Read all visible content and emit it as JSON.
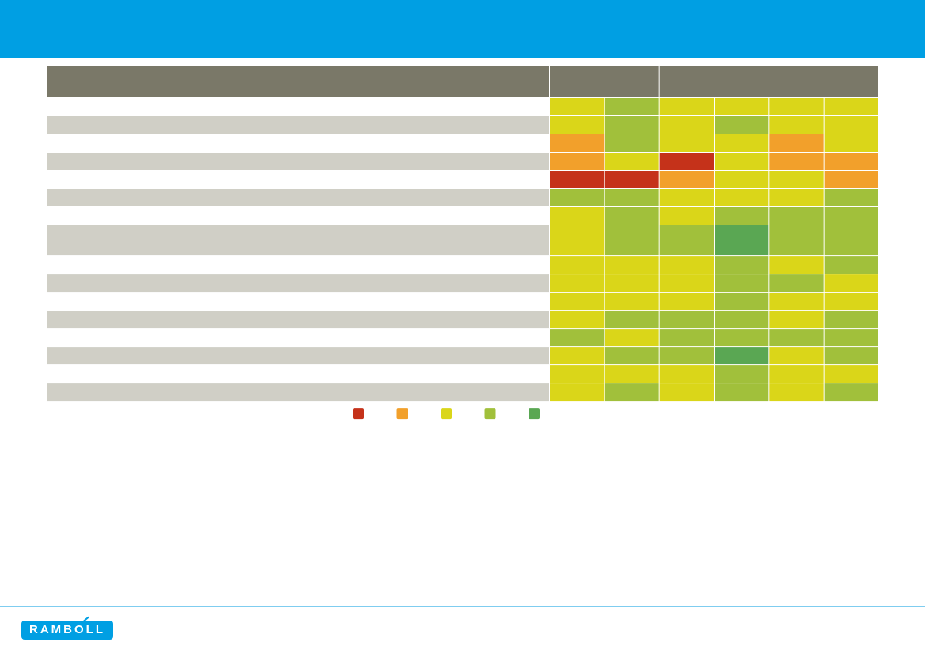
{
  "logo": {
    "text": "RAMBOLL"
  },
  "colors": {
    "header_bar": "#009fe3",
    "table_header": "#7a7868",
    "row_stripe": "#d0cfc6",
    "scale": [
      "#c5321a",
      "#f2a02b",
      "#dad619",
      "#a1c03b",
      "#5aa753"
    ]
  },
  "chart_data": {
    "type": "heatmap",
    "title": "",
    "xlabel": "",
    "ylabel": "",
    "legend_placement": "bottom",
    "scale_min": 1,
    "scale_max": 5,
    "row_heights": [
      1,
      1,
      1,
      1,
      1,
      1,
      1,
      1.7,
      1,
      1,
      1,
      1,
      1,
      1,
      1,
      1
    ],
    "values": [
      [
        3,
        4,
        3,
        3,
        3,
        3
      ],
      [
        3,
        4,
        3,
        4,
        3,
        3
      ],
      [
        2,
        4,
        3,
        3,
        2,
        3
      ],
      [
        2,
        3,
        1,
        3,
        2,
        2
      ],
      [
        1,
        1,
        2,
        3,
        3,
        2
      ],
      [
        4,
        4,
        3,
        3,
        3,
        4
      ],
      [
        3,
        4,
        3,
        4,
        4,
        4
      ],
      [
        3,
        4,
        4,
        5,
        4,
        4
      ],
      [
        3,
        3,
        3,
        4,
        3,
        4
      ],
      [
        3,
        3,
        3,
        4,
        4,
        3
      ],
      [
        3,
        3,
        3,
        4,
        3,
        3
      ],
      [
        3,
        4,
        4,
        4,
        3,
        4
      ],
      [
        4,
        3,
        4,
        4,
        4,
        4
      ],
      [
        3,
        4,
        4,
        5,
        3,
        4
      ],
      [
        3,
        3,
        3,
        4,
        3,
        3
      ],
      [
        3,
        4,
        3,
        4,
        3,
        4
      ]
    ]
  }
}
